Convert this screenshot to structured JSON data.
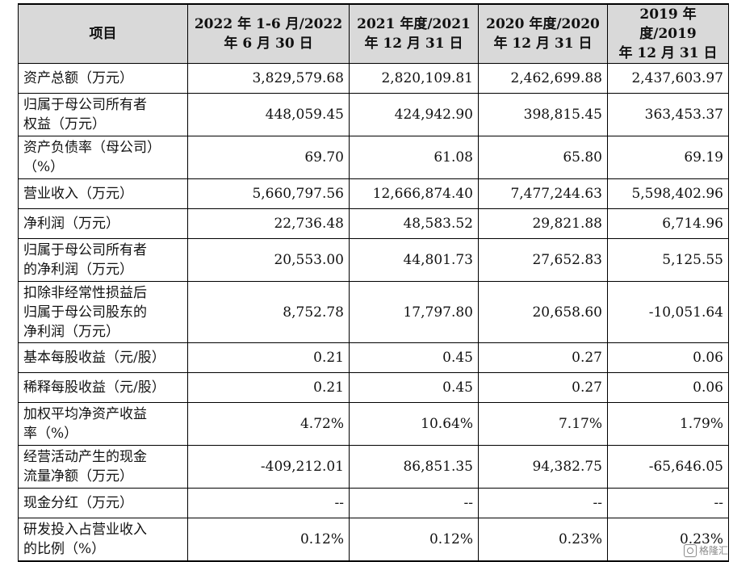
{
  "table": {
    "header": {
      "item": "项目",
      "cols": [
        {
          "line1": "2022 年 1-6 月/2022",
          "line2": "年 6 月 30 日"
        },
        {
          "line1": "2021 年度/2021",
          "line2": "年 12 月 31 日"
        },
        {
          "line1": "2020 年度/2020",
          "line2": "年 12 月 31 日"
        },
        {
          "line1": "2019 年度/2019",
          "line2": "年 12 月 31 日"
        }
      ]
    },
    "rows": [
      {
        "label": [
          "资产总额（万元）"
        ],
        "values": [
          "3,829,579.68",
          "2,820,109.81",
          "2,462,699.88",
          "2,437,603.97"
        ]
      },
      {
        "label": [
          "归属于母公司所有者",
          "权益（万元）"
        ],
        "values": [
          "448,059.45",
          "424,942.90",
          "398,815.45",
          "363,453.37"
        ]
      },
      {
        "label": [
          "资产负债率（母公司）",
          "（%）"
        ],
        "values": [
          "69.70",
          "61.08",
          "65.80",
          "69.19"
        ]
      },
      {
        "label": [
          "营业收入（万元）"
        ],
        "values": [
          "5,660,797.56",
          "12,666,874.40",
          "7,477,244.63",
          "5,598,402.96"
        ]
      },
      {
        "label": [
          "净利润（万元）"
        ],
        "values": [
          "22,736.48",
          "48,583.52",
          "29,821.88",
          "6,714.96"
        ]
      },
      {
        "label": [
          "归属于母公司所有者",
          "的净利润（万元）"
        ],
        "values": [
          "20,553.00",
          "44,801.73",
          "27,652.83",
          "5,125.55"
        ]
      },
      {
        "label": [
          "扣除非经常性损益后",
          "归属于母公司股东的",
          "净利润（万元）"
        ],
        "values": [
          "8,752.78",
          "17,797.80",
          "20,658.60",
          "-10,051.64"
        ]
      },
      {
        "label": [
          "基本每股收益（元/股）"
        ],
        "values": [
          "0.21",
          "0.45",
          "0.27",
          "0.06"
        ]
      },
      {
        "label": [
          "稀释每股收益（元/股）"
        ],
        "values": [
          "0.21",
          "0.45",
          "0.27",
          "0.06"
        ]
      },
      {
        "label": [
          "加权平均净资产收益",
          "率（%）"
        ],
        "values": [
          "4.72%",
          "10.64%",
          "7.17%",
          "1.79%"
        ]
      },
      {
        "label": [
          "经营活动产生的现金",
          "流量净额（万元）"
        ],
        "values": [
          "-409,212.01",
          "86,851.35",
          "94,382.75",
          "-65,646.05"
        ]
      },
      {
        "label": [
          "现金分红（万元）"
        ],
        "values": [
          "--",
          "--",
          "--",
          "--"
        ]
      },
      {
        "label": [
          "研发投入占营业收入",
          "的比例（%）"
        ],
        "values": [
          "0.12%",
          "0.12%",
          "0.23%",
          "0.23%"
        ]
      }
    ]
  },
  "watermark": {
    "text": "格隆汇",
    "icon": "watermark-logo-icon"
  }
}
